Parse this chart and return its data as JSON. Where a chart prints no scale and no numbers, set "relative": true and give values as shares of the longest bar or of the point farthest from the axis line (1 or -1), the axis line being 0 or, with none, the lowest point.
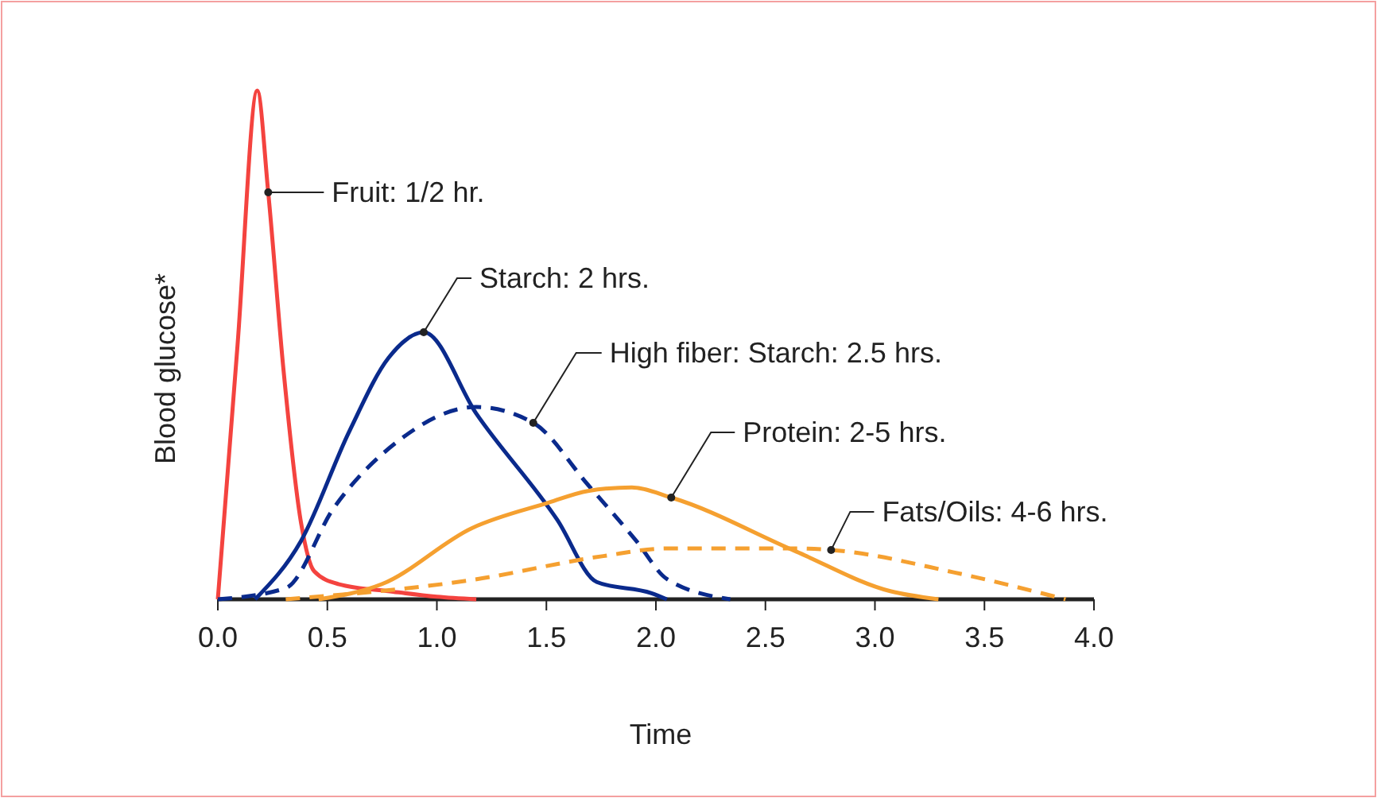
{
  "chart_data": {
    "type": "line",
    "xlabel": "Time",
    "ylabel": "Blood glucose*",
    "relative": true,
    "xlim": [
      0,
      4
    ],
    "xticks": [
      {
        "value": 0,
        "label": "0.0"
      },
      0.5,
      {
        "value": 1,
        "label": "1.0"
      },
      1.5,
      {
        "value": 2,
        "label": "2.0"
      },
      2.5,
      {
        "value": 3,
        "label": "3.0"
      },
      3.5,
      {
        "value": 4,
        "label": "4.0"
      }
    ],
    "series": [
      {
        "color": "#f4433f",
        "line_style": "solid",
        "x": [
          0,
          0.09,
          0.18,
          0.23,
          0.3,
          0.38,
          0.44,
          0.55,
          0.8,
          1.0,
          1.18
        ],
        "values": [
          0,
          0.5,
          1,
          0.8,
          0.45,
          0.15,
          0.055,
          0.03,
          0.015,
          0.005,
          0
        ]
      },
      {
        "color": "#0a2a8c",
        "line_style": "solid",
        "x": [
          0.17,
          0.38,
          0.6,
          0.78,
          0.94,
          1.18,
          1.55,
          1.73,
          1.98,
          2.05
        ],
        "values": [
          0,
          0.115,
          0.33,
          0.475,
          0.525,
          0.365,
          0.156,
          0.034,
          0.012,
          0
        ]
      },
      {
        "color": "#0a2a8c",
        "line_style": "dashed",
        "x": [
          0,
          0.31,
          0.53,
          0.82,
          1.18,
          1.44,
          1.69,
          1.91,
          2.05,
          2.34
        ],
        "values": [
          0,
          0.022,
          0.18,
          0.31,
          0.378,
          0.347,
          0.225,
          0.115,
          0.04,
          0
        ]
      },
      {
        "color": "#f5a030",
        "line_style": "solid",
        "x": [
          0.46,
          0.75,
          1.16,
          1.51,
          1.69,
          1.89,
          2.07,
          2.64,
          3.07,
          3.29
        ],
        "values": [
          0,
          0.03,
          0.14,
          0.19,
          0.213,
          0.22,
          0.2,
          0.094,
          0.016,
          0
        ]
      },
      {
        "color": "#f5a030",
        "line_style": "dashed",
        "x": [
          0.31,
          1.16,
          1.76,
          2.05,
          2.64,
          2.8,
          3.36,
          3.87
        ],
        "values": [
          0,
          0.038,
          0.085,
          0.1,
          0.1,
          0.097,
          0.053,
          0
        ]
      }
    ],
    "annotations": [
      {
        "text": "Fruit: 1/2 hr.",
        "x": 0.23,
        "y": 0.8
      },
      {
        "text": "Starch: 2 hrs.",
        "x": 0.94,
        "y": 0.525
      },
      {
        "text": "High fiber: Starch: 2.5 hrs.",
        "x": 1.44,
        "y": 0.347
      },
      {
        "text": "Protein: 2-5 hrs.",
        "x": 2.07,
        "y": 0.2
      },
      {
        "text": "Fats/Oils: 4-6 hrs.",
        "x": 2.8,
        "y": 0.097
      }
    ]
  }
}
